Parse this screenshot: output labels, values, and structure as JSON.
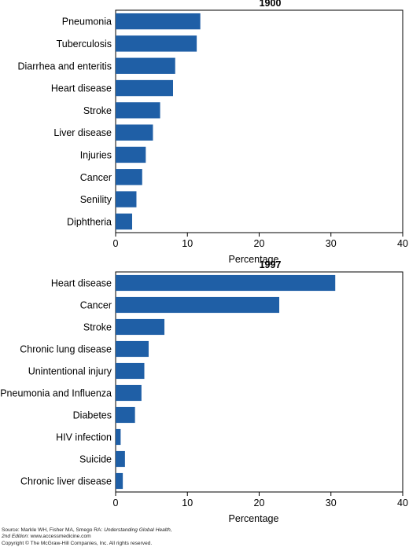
{
  "colors": {
    "bar": "#1f5fa6",
    "axis": "#000000",
    "text": "#000000"
  },
  "chart_data": [
    {
      "type": "bar",
      "orientation": "horizontal",
      "title": "1900",
      "xlabel": "Percentage",
      "ylabel": "",
      "xlim": [
        0,
        40
      ],
      "xticks": [
        0,
        10,
        20,
        30,
        40
      ],
      "grid": false,
      "legend": "none",
      "categories": [
        "Pneumonia",
        "Tuberculosis",
        "Diarrhea and enteritis",
        "Heart disease",
        "Stroke",
        "Liver disease",
        "Injuries",
        "Cancer",
        "Senility",
        "Diphtheria"
      ],
      "values": [
        11.8,
        11.3,
        8.3,
        8.0,
        6.2,
        5.2,
        4.2,
        3.7,
        2.9,
        2.3
      ]
    },
    {
      "type": "bar",
      "orientation": "horizontal",
      "title": "1997",
      "xlabel": "Percentage",
      "ylabel": "",
      "xlim": [
        0,
        40
      ],
      "xticks": [
        0,
        10,
        20,
        30,
        40
      ],
      "grid": false,
      "legend": "none",
      "categories": [
        "Heart disease",
        "Cancer",
        "Stroke",
        "Chronic lung disease",
        "Unintentional injury",
        "Pneumonia and Influenza",
        "Diabetes",
        "HIV infection",
        "Suicide",
        "Chronic liver disease"
      ],
      "values": [
        30.6,
        22.8,
        6.8,
        4.6,
        4.0,
        3.6,
        2.7,
        0.7,
        1.3,
        1.0
      ]
    }
  ],
  "source": {
    "line1_prefix": "Source: Markle WH, Fisher MA, Smego RA: ",
    "line1_italic": "Understanding Global Health,",
    "line2_italic": "2nd Edition",
    "line2_rest": ": www.accessmedicine.com",
    "copyright": "Copyright © The McGraw-Hill Companies, Inc. All rights reserved."
  }
}
